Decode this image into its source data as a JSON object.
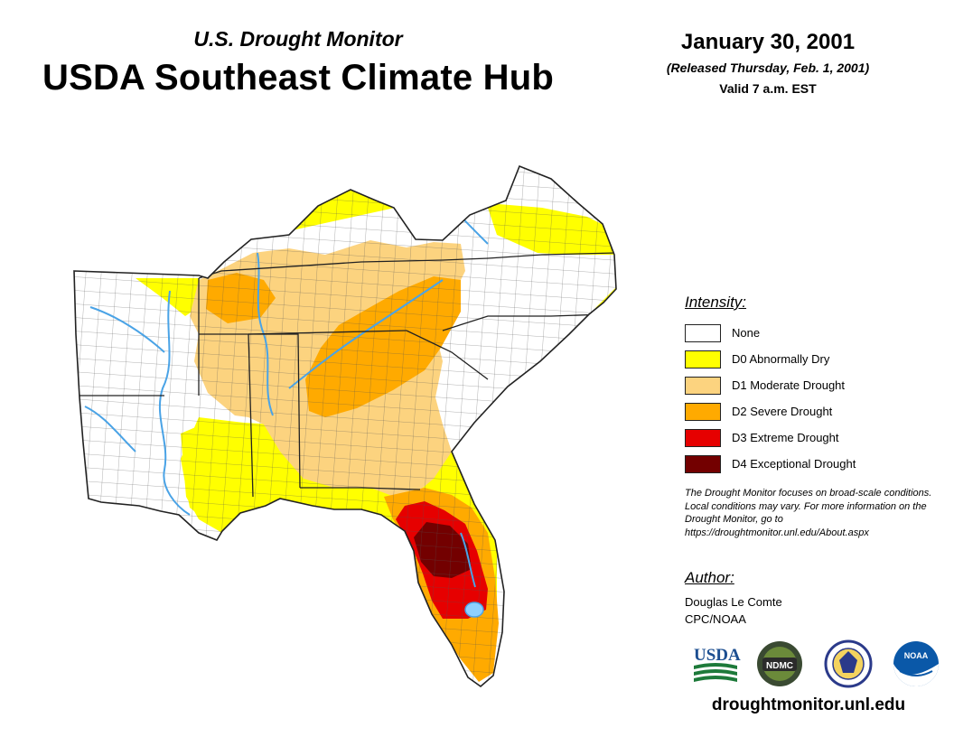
{
  "header": {
    "subtitle": "U.S. Drought Monitor",
    "title": "USDA Southeast Climate Hub",
    "date": "January 30, 2001",
    "released": "(Released Thursday, Feb. 1, 2001)",
    "valid": "Valid 7 a.m. EST"
  },
  "legend": {
    "heading": "Intensity:",
    "items": [
      {
        "label": "None",
        "color": "#ffffff"
      },
      {
        "label": "D0 Abnormally Dry",
        "color": "#ffff00"
      },
      {
        "label": "D1 Moderate Drought",
        "color": "#fcd37f"
      },
      {
        "label": "D2 Severe Drought",
        "color": "#ffaa00"
      },
      {
        "label": "D3 Extreme Drought",
        "color": "#e60000"
      },
      {
        "label": "D4 Exceptional Drought",
        "color": "#730000"
      }
    ]
  },
  "note": "The Drought Monitor focuses on broad-scale conditions. Local conditions may vary. For more information on the Drought Monitor, go to https://droughtmonitor.unl.edu/About.aspx",
  "author": {
    "heading": "Author:",
    "name": "Douglas Le Comte",
    "org": "CPC/NOAA"
  },
  "logos": {
    "usda": "USDA",
    "ndmc": "NDMC",
    "noaa": "NOAA"
  },
  "footer": {
    "site": "droughtmonitor.unl.edu"
  },
  "colors": {
    "water": "#4aa3e6",
    "border": "#222222",
    "county": "#555555"
  }
}
